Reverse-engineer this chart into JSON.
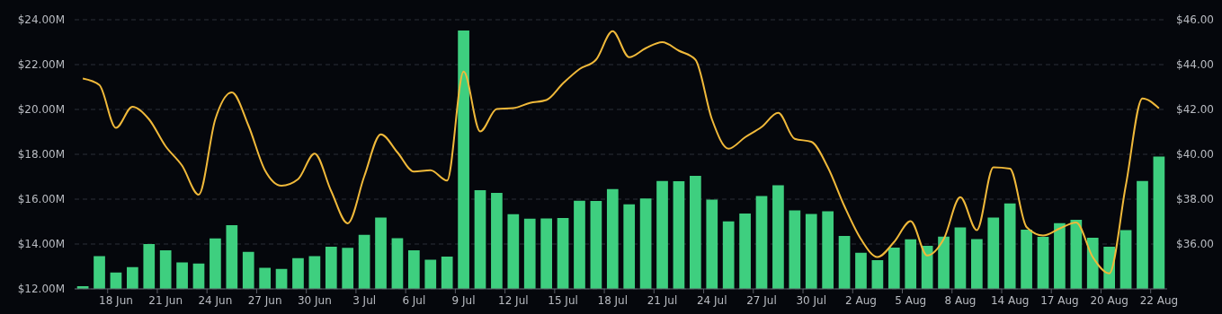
{
  "chart_data": {
    "type": "bar",
    "categories": [
      null,
      null,
      "18 Jun",
      null,
      null,
      "21 Jun",
      null,
      null,
      "24 Jun",
      null,
      null,
      "27 Jun",
      null,
      null,
      "30 Jun",
      null,
      null,
      "3 Jul",
      null,
      null,
      "6 Jul",
      null,
      null,
      "9 Jul",
      null,
      null,
      "12 Jul",
      null,
      null,
      "15 Jul",
      null,
      null,
      "18 Jul",
      null,
      null,
      "21 Jul",
      null,
      null,
      "24 Jul",
      null,
      null,
      "27 Jul",
      null,
      null,
      "30 Jul",
      null,
      null,
      "2 Aug",
      null,
      null,
      "5 Aug",
      null,
      null,
      "8 Aug",
      null,
      null,
      "14 Aug",
      null,
      null,
      "17 Aug",
      null,
      null,
      "20 Aug",
      null,
      null,
      "22 Aug"
    ],
    "series": [
      {
        "color": "#3ecf7f",
        "values": [
          12.12,
          13.46,
          12.73,
          12.97,
          14.0,
          13.72,
          13.18,
          13.13,
          14.25,
          14.84,
          13.65,
          12.94,
          12.89,
          13.37,
          13.46,
          13.88,
          13.83,
          14.41,
          15.18,
          14.26,
          13.72,
          13.3,
          13.44,
          23.52,
          16.4,
          16.28,
          15.33,
          15.13,
          15.14,
          15.16,
          15.93,
          15.92,
          16.45,
          15.77,
          16.03,
          16.81,
          16.8,
          17.04,
          15.98,
          15.01,
          15.36,
          16.14,
          16.62,
          15.5,
          15.34,
          15.46,
          14.36,
          13.61,
          13.28,
          13.84,
          14.21,
          13.92,
          14.33,
          14.74,
          14.22,
          15.18,
          15.81,
          14.64,
          14.32,
          14.93,
          15.08,
          14.28,
          13.88,
          14.62,
          16.81,
          17.9
        ]
      },
      {
        "type": "line",
        "axis": "y2",
        "color": "#f0b93a",
        "values": [
          43.38,
          43.09,
          41.18,
          42.12,
          41.56,
          40.36,
          39.49,
          38.2,
          41.56,
          42.76,
          41.29,
          39.29,
          38.6,
          38.89,
          40.03,
          38.36,
          36.92,
          39.02,
          40.89,
          40.09,
          39.23,
          39.29,
          38.83,
          43.69,
          41.02,
          42.02,
          42.06,
          42.29,
          42.42,
          43.16,
          43.8,
          44.22,
          45.49,
          44.33,
          44.73,
          45.0,
          44.62,
          44.22,
          41.56,
          40.25,
          40.76,
          41.22,
          41.85,
          40.69,
          40.56,
          39.42,
          37.69,
          36.22,
          35.42,
          36.09,
          37.02,
          35.49,
          36.22,
          38.09,
          36.62,
          39.42,
          39.36,
          36.76,
          36.38,
          36.69,
          36.96,
          35.42,
          34.69,
          38.62,
          42.49,
          42.05
        ]
      }
    ],
    "ylim": [
      12,
      24
    ],
    "yticks": [
      {
        "value": 12,
        "label": "$12.00M"
      },
      {
        "value": 14,
        "label": "$14.00M"
      },
      {
        "value": 16,
        "label": "$16.00M"
      },
      {
        "value": 18,
        "label": "$18.00M"
      },
      {
        "value": 20,
        "label": "$20.00M"
      },
      {
        "value": 22,
        "label": "$22.00M"
      },
      {
        "value": 24,
        "label": "$24.00M"
      }
    ],
    "y2lim": [
      34,
      46
    ],
    "y2ticks": [
      {
        "value": 36,
        "label": "$36.00"
      },
      {
        "value": 38,
        "label": "$38.00"
      },
      {
        "value": 40,
        "label": "$40.00"
      },
      {
        "value": 42,
        "label": "$42.00"
      },
      {
        "value": 44,
        "label": "$44.00"
      },
      {
        "value": 46,
        "label": "$46.00"
      }
    ],
    "grid": "y",
    "marker": "none",
    "line_style": "solid"
  }
}
